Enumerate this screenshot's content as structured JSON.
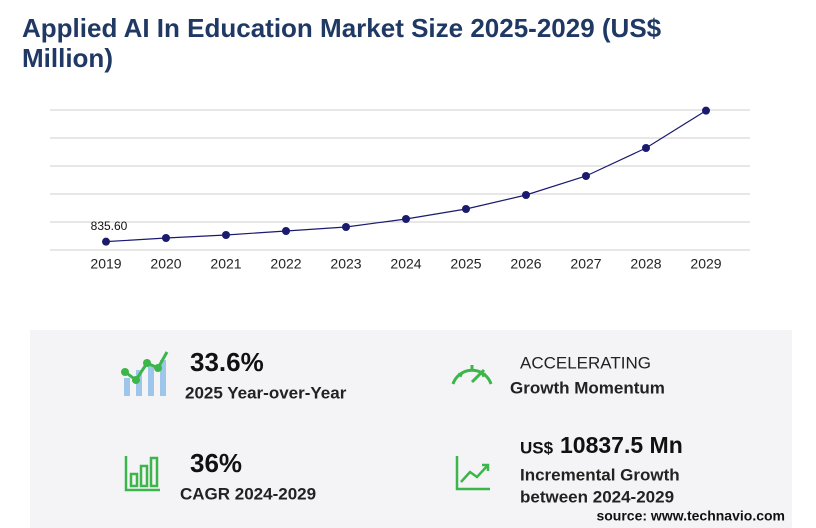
{
  "chart_data": {
    "type": "line",
    "title": "Applied AI In Education Market Size 2025-2029 (US$",
    "title_line2": "Million)",
    "categories": [
      "2019",
      "2020",
      "2021",
      "2022",
      "2023",
      "2024",
      "2025",
      "2026",
      "2027",
      "2028",
      "2029"
    ],
    "series": [
      {
        "name": "Market Size",
        "color": "#1a1a6e",
        "values": [
          835.6,
          1200,
          1500,
          1900,
          2300,
          3100,
          4100,
          5500,
          7400,
          10200,
          13938
        ],
        "value_labels": [
          "835.60",
          null,
          null,
          null,
          null,
          null,
          null,
          null,
          null,
          null,
          null
        ]
      }
    ],
    "ylim": [
      0,
      14000
    ],
    "yticks": [
      0,
      2800,
      5600,
      8400,
      11200,
      14000
    ],
    "grid": true
  },
  "highlights": {
    "yoy_value": "33.6%",
    "yoy_label": "2025 Year-over-Year",
    "momentum_value": "ACCELERATING",
    "momentum_label": "Growth Momentum",
    "cagr_value": "36%",
    "cagr_label": "CAGR 2024-2029",
    "incr_unit": "US$",
    "incr_value": "10837.5 Mn",
    "incr_label_1": "Incremental Growth",
    "incr_label_2": "between 2024-2029"
  },
  "source": "source: www.technavio.com"
}
